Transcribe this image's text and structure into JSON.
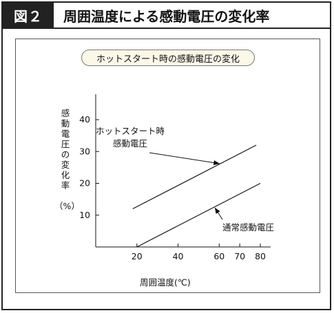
{
  "figure": {
    "badge": "図２",
    "title": "周囲温度による感動電圧の変化率"
  },
  "chart_data": {
    "type": "line",
    "title": "ホットスタート時の感動電圧の変化",
    "xlabel": "周囲温度(℃)",
    "ylabel": "感動電圧の変化率",
    "ylabel_unit": "（%）",
    "xlim": [
      0,
      85
    ],
    "ylim": [
      0,
      48
    ],
    "xticks": [
      20,
      40,
      60,
      70,
      80
    ],
    "yticks": [
      10,
      20,
      30,
      40
    ],
    "grid": false,
    "series": [
      {
        "name": "ホットスタート時感動電圧",
        "x": [
          18,
          78
        ],
        "y": [
          12,
          32
        ]
      },
      {
        "name": "通常感動電圧",
        "x": [
          20,
          80
        ],
        "y": [
          0,
          20
        ]
      }
    ],
    "annotations": [
      {
        "lines": [
          "ホットスタート時",
          "感動電圧"
        ],
        "target_series": 0
      },
      {
        "lines": [
          "通常感動電圧"
        ],
        "target_series": 1
      }
    ]
  }
}
